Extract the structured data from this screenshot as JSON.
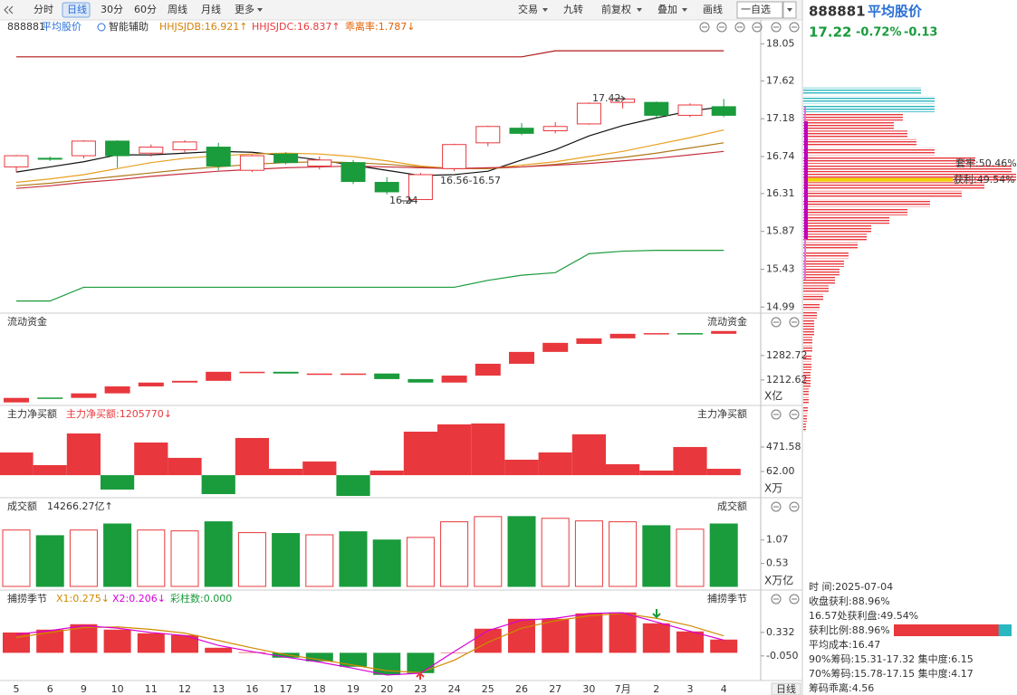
{
  "toolbar": {
    "left": [
      {
        "label": "分时"
      },
      {
        "label": "日线",
        "selected": true
      },
      {
        "label": "30分"
      },
      {
        "label": "60分"
      },
      {
        "label": "周线"
      },
      {
        "label": "月线"
      },
      {
        "label": "更多",
        "dropdown": true
      }
    ],
    "right": [
      {
        "label": "交易",
        "dropdown": true
      },
      {
        "label": "九转"
      },
      {
        "label": "前复权",
        "dropdown": true
      },
      {
        "label": "叠加",
        "dropdown": true
      },
      {
        "label": "画线"
      },
      {
        "label": "一自选",
        "boxed": true
      }
    ]
  },
  "quote": {
    "code": "888881",
    "name": "平均股价",
    "price": "17.22",
    "change_pct": "-0.72%",
    "change": "-0.13"
  },
  "x_labels": [
    "5",
    "6",
    "9",
    "10",
    "11",
    "12",
    "13",
    "16",
    "17",
    "18",
    "19",
    "20",
    "23",
    "24",
    "25",
    "26",
    "27",
    "30",
    "7月",
    "2",
    "3",
    "4"
  ],
  "period": "日线",
  "up_color": "#e8383d",
  "down_color": "#1a9b3c",
  "main": {
    "legend": {
      "code": "888881",
      "name": "平均股价",
      "assist": "智能辅助",
      "hhjsjdb": "HHJSJDB:16.921↑",
      "hhjsjdc": "HHJSJDC:16.837↑",
      "bias": "乖离率:1.787↓"
    },
    "ylim": [
      14.93,
      18.14
    ],
    "yticks": [
      18.05,
      17.62,
      17.18,
      16.74,
      16.31,
      15.87,
      15.43,
      14.99
    ],
    "candles": {
      "open": [
        16.62,
        16.72,
        16.75,
        16.92,
        16.78,
        16.82,
        16.85,
        16.58,
        16.77,
        16.63,
        16.67,
        16.44,
        16.24,
        16.6,
        16.9,
        17.07,
        17.04,
        17.12,
        17.37,
        17.37,
        17.22,
        17.32
      ],
      "high": [
        16.76,
        16.74,
        16.93,
        16.93,
        16.88,
        16.93,
        16.9,
        16.76,
        16.79,
        16.74,
        16.7,
        16.5,
        16.55,
        16.89,
        17.1,
        17.13,
        17.14,
        17.37,
        17.42,
        17.38,
        17.36,
        17.41
      ],
      "low": [
        16.56,
        16.69,
        16.72,
        16.61,
        16.74,
        16.78,
        16.58,
        16.56,
        16.65,
        16.59,
        16.42,
        16.3,
        16.24,
        16.57,
        16.86,
        16.99,
        17.01,
        17.11,
        17.3,
        17.19,
        17.2,
        17.2
      ],
      "close": [
        16.75,
        16.71,
        16.92,
        16.75,
        16.85,
        16.91,
        16.63,
        16.75,
        16.67,
        16.7,
        16.45,
        16.33,
        16.53,
        16.88,
        17.09,
        17.01,
        17.09,
        17.36,
        17.41,
        17.22,
        17.34,
        17.22
      ]
    },
    "lines": [
      {
        "color": "#b01818",
        "values": [
          17.9,
          17.9,
          17.9,
          17.9,
          17.9,
          17.9,
          17.9,
          17.9,
          17.9,
          17.9,
          17.9,
          17.9,
          17.9,
          17.9,
          17.9,
          17.9,
          17.97,
          17.97,
          17.97,
          17.97,
          17.97,
          17.97
        ]
      },
      {
        "color": "#111111",
        "values": [
          16.56,
          16.62,
          16.68,
          16.76,
          16.76,
          16.78,
          16.8,
          16.79,
          16.75,
          16.7,
          16.64,
          16.58,
          16.52,
          16.53,
          16.57,
          16.7,
          16.82,
          16.98,
          17.1,
          17.19,
          17.27,
          17.32
        ]
      },
      {
        "color": "#e8a020",
        "values": [
          16.44,
          16.48,
          16.53,
          16.6,
          16.67,
          16.72,
          16.75,
          16.77,
          16.78,
          16.77,
          16.74,
          16.69,
          16.63,
          16.6,
          16.6,
          16.64,
          16.68,
          16.74,
          16.8,
          16.88,
          16.96,
          17.05
        ]
      },
      {
        "color": "#b07818",
        "values": [
          16.4,
          16.43,
          16.47,
          16.51,
          16.55,
          16.59,
          16.62,
          16.65,
          16.67,
          16.68,
          16.67,
          16.65,
          16.62,
          16.6,
          16.6,
          16.62,
          16.65,
          16.69,
          16.73,
          16.78,
          16.84,
          16.9
        ]
      },
      {
        "color": "#c83040",
        "values": [
          16.37,
          16.4,
          16.44,
          16.47,
          16.51,
          16.54,
          16.57,
          16.59,
          16.61,
          16.62,
          16.63,
          16.62,
          16.61,
          16.6,
          16.61,
          16.62,
          16.64,
          16.66,
          16.69,
          16.72,
          16.76,
          16.8
        ]
      },
      {
        "color": "#1a9b3c",
        "values": [
          15.06,
          15.06,
          15.22,
          15.22,
          15.22,
          15.22,
          15.22,
          15.22,
          15.22,
          15.22,
          15.22,
          15.22,
          15.22,
          15.22,
          15.3,
          15.36,
          15.39,
          15.61,
          15.64,
          15.65,
          15.65,
          15.65
        ]
      }
    ],
    "annotations": [
      {
        "text": "17.42"
      },
      {
        "text": "16.24"
      },
      {
        "text": "16.56-16.57"
      }
    ]
  },
  "flow": {
    "title": "流动资金",
    "unit": "X亿",
    "ylim": [
      1142,
      1394
    ],
    "yticks": [
      1282.72,
      1212.62
    ],
    "open": [
      1148,
      1162,
      1161,
      1174,
      1194,
      1205,
      1210,
      1234,
      1236,
      1228,
      1228,
      1231,
      1215,
      1205,
      1225,
      1259,
      1293,
      1316,
      1332,
      1345,
      1347,
      1345
    ],
    "close": [
      1161,
      1160,
      1174,
      1194,
      1205,
      1210,
      1236,
      1236,
      1231,
      1231,
      1231,
      1215,
      1205,
      1225,
      1259,
      1293,
      1319,
      1332,
      1345,
      1347,
      1345,
      1353
    ]
  },
  "net": {
    "title": "主力净买额",
    "value_text": "主力净买额:1205770↓",
    "unit": "X万",
    "ylim": [
      -378,
      896
    ],
    "yticks": [
      471.58,
      {
        "value": 62,
        "label": "62.00"
      }
    ],
    "values": [
      380,
      168,
      699,
      -241,
      547,
      290,
      -317,
      623,
      107,
      229,
      -348,
      77,
      729,
      851,
      866,
      259,
      381,
      684,
      183,
      77,
      472,
      107
    ]
  },
  "amount": {
    "title": "成交额",
    "value_text": "14266.27亿↑",
    "unit": "X万亿",
    "ylim": [
      0,
      1.92
    ],
    "yticks": [
      1.07,
      0.53
    ],
    "values": [
      1.3,
      1.17,
      1.3,
      1.44,
      1.3,
      1.28,
      1.49,
      1.24,
      1.22,
      1.19,
      1.26,
      1.07,
      1.13,
      1.49,
      1.61,
      1.61,
      1.57,
      1.51,
      1.49,
      1.4,
      1.32,
      1.44
    ]
  },
  "season": {
    "title": "捕捞季节",
    "colorbar_text": "彩柱数:0.000",
    "ylim": [
      -0.42,
      0.96
    ],
    "yticks": [
      0.332,
      {
        "value": -0.05,
        "label": "-0.050"
      }
    ],
    "values": [
      0.33,
      0.376,
      0.464,
      0.376,
      0.317,
      0.288,
      0.082,
      0.01,
      -0.079,
      -0.138,
      -0.226,
      -0.358,
      -0.329,
      0,
      0.391,
      0.552,
      0.552,
      0.64,
      0.655,
      0.479,
      0.347,
      0.215
    ],
    "series": [
      {
        "name": "X1:0.275↓",
        "color": "#d08a00",
        "values": [
          0.25,
          0.33,
          0.41,
          0.42,
          0.38,
          0.32,
          0.2,
          0.08,
          -0.03,
          -0.11,
          -0.2,
          -0.29,
          -0.32,
          -0.12,
          0.17,
          0.4,
          0.52,
          0.6,
          0.64,
          0.56,
          0.44,
          0.275
        ]
      },
      {
        "name": "X2:0.206↓",
        "color": "#d800d8",
        "values": [
          0.3,
          0.36,
          0.44,
          0.4,
          0.33,
          0.28,
          0.12,
          0.02,
          -0.07,
          -0.15,
          -0.25,
          -0.36,
          -0.33,
          0.02,
          0.36,
          0.53,
          0.56,
          0.64,
          0.65,
          0.5,
          0.35,
          0.206
        ]
      }
    ]
  },
  "chips": {
    "profit_color": "#e8383d",
    "loss_color": "#2ab7c0",
    "avg_cost": 16.47,
    "range90": [
      15.31,
      17.32
    ],
    "range70": [
      15.78,
      17.15
    ],
    "prices": [
      17.5,
      17.4,
      17.3,
      17.2,
      17.1,
      17.0,
      16.9,
      16.8,
      16.7,
      16.6,
      16.5,
      16.4,
      16.3,
      16.2,
      16.1,
      16.0,
      15.9,
      15.8,
      15.7,
      15.6,
      15.5,
      15.4,
      15.3,
      15.2,
      15.1,
      15.0,
      14.9,
      14.8,
      14.7,
      14.6,
      14.5,
      14.4,
      14.3,
      14.2,
      14.1,
      14.0,
      13.9,
      13.8,
      13.7,
      13.6
    ],
    "widths": [
      130,
      145,
      145,
      110,
      100,
      115,
      125,
      145,
      190,
      230,
      235,
      200,
      175,
      140,
      115,
      95,
      75,
      70,
      60,
      50,
      45,
      40,
      35,
      28,
      22,
      18,
      15,
      12,
      12,
      10,
      10,
      9,
      9,
      8,
      8,
      6,
      6,
      5,
      4,
      3
    ],
    "locked_label": "套牢:50.46%",
    "profit_label": "获利:49.54%"
  },
  "info": {
    "lines": [
      "时    间:2025-07-04",
      "收盘获利:88.96%",
      "16.57处获利盘:49.54%"
    ],
    "profit_ratio": {
      "label": "获利比例:88.96%",
      "value": 88.96
    },
    "lines2": [
      "平均成本:16.47",
      "90%筹码:15.31-17.32 集中度:6.15",
      "70%筹码:15.78-17.15 集中度:4.17",
      "筹码乖离:4.56"
    ]
  }
}
